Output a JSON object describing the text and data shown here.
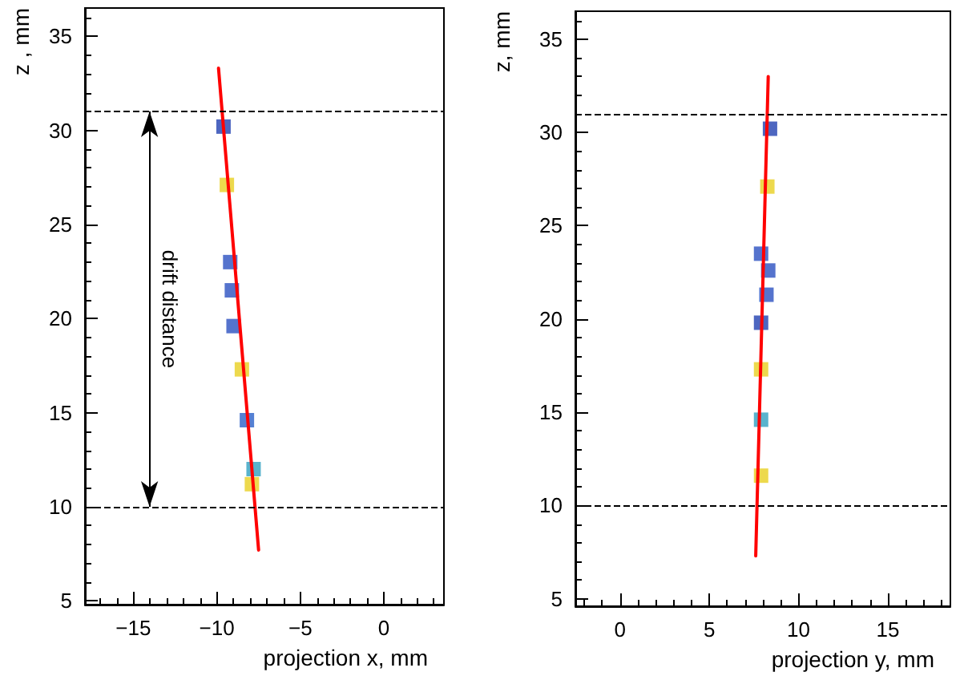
{
  "chart_data": [
    {
      "type": "scatter",
      "xlabel": "projection x, mm",
      "ylabel": "z , mm",
      "xlim": [
        -17.9,
        3.6
      ],
      "ylim": [
        4.8,
        36.5
      ],
      "xticks": [
        -15,
        -10,
        -5,
        0
      ],
      "yticks": [
        5,
        10,
        15,
        20,
        25,
        30,
        35
      ],
      "grid": false,
      "series": [
        {
          "type": "scatter",
          "marker": "square",
          "x": [
            -9.6,
            -9.4,
            -9.2,
            -9.1,
            -9.0,
            -8.5,
            -8.2,
            -7.8,
            -7.9
          ],
          "values": [
            30.2,
            27.1,
            23.0,
            21.5,
            19.6,
            17.3,
            14.6,
            12.0,
            11.2
          ],
          "colors": [
            "#2040b0",
            "#e8d020",
            "#2a50c0",
            "#2a50c0",
            "#2a50c0",
            "#e8d020",
            "#2a60c8",
            "#30a0c0",
            "#e8d020"
          ]
        },
        {
          "type": "line",
          "color": "#ff0000",
          "x": [
            -9.9,
            -7.5
          ],
          "values": [
            33.3,
            7.7
          ]
        }
      ],
      "ref_lines": [
        {
          "axis": "y",
          "value": 31,
          "color": "#000000",
          "line_style": "dashed"
        },
        {
          "axis": "y",
          "value": 10,
          "color": "#000000",
          "line_style": "dashed"
        }
      ],
      "annotations": [
        "drift distance"
      ]
    },
    {
      "type": "scatter",
      "xlabel": "projection y, mm",
      "ylabel": "z, mm",
      "xlim": [
        -2.5,
        18.5
      ],
      "ylim": [
        4.6,
        36.5
      ],
      "xticks": [
        0,
        5,
        10,
        15
      ],
      "yticks": [
        5,
        10,
        15,
        20,
        25,
        30,
        35
      ],
      "grid": false,
      "series": [
        {
          "type": "scatter",
          "marker": "square",
          "x": [
            8.4,
            8.25,
            7.9,
            8.3,
            8.2,
            7.9,
            7.9,
            7.9,
            7.9
          ],
          "values": [
            30.2,
            27.1,
            23.5,
            22.6,
            21.3,
            19.8,
            17.3,
            14.6,
            11.6
          ],
          "colors": [
            "#2040b0",
            "#e8d020",
            "#2a50c0",
            "#2a50c0",
            "#2a50c0",
            "#2040b0",
            "#e8d020",
            "#30a0c0",
            "#e8d020"
          ]
        },
        {
          "type": "line",
          "color": "#ff0000",
          "x": [
            8.3,
            7.6
          ],
          "values": [
            33.0,
            7.3
          ]
        }
      ],
      "ref_lines": [
        {
          "axis": "y",
          "value": 31,
          "color": "#000000",
          "line_style": "dashed"
        },
        {
          "axis": "y",
          "value": 10,
          "color": "#000000",
          "line_style": "dashed"
        }
      ]
    }
  ]
}
